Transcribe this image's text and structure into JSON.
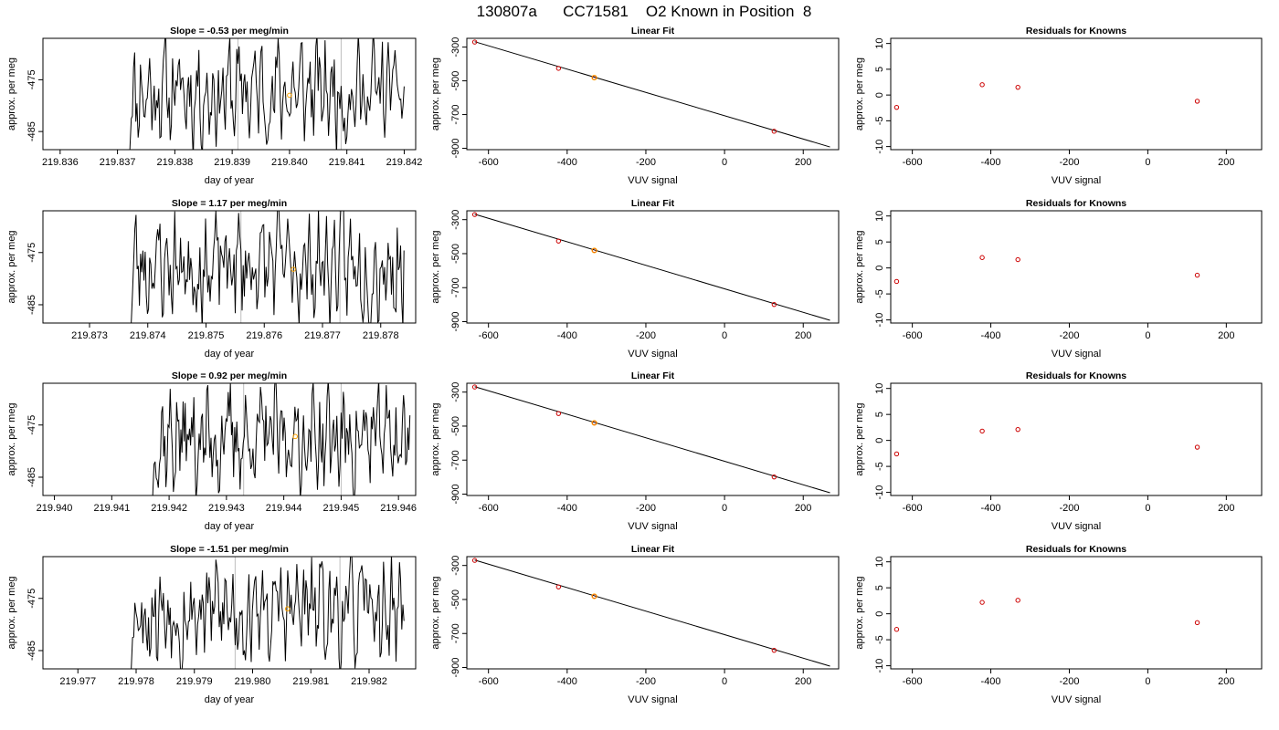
{
  "title": "130807a      CC71581    O2 Known in Position  8",
  "colors": {
    "trace": "#000000",
    "orange_point": "#ffa500",
    "known_point": "#cc0000",
    "vertical_line": "#bebebe",
    "fit_line": "#000000"
  },
  "chart_data": [
    {
      "type": "line",
      "title": "Slope =  -0.53  per meg/min",
      "xlabel": "day of year",
      "ylabel": "approx. per meg",
      "xlim": [
        219.8357,
        219.8422
      ],
      "ylim": [
        -488.5,
        -467.0
      ],
      "xticks": [
        "219.836",
        "219.837",
        "219.838",
        "219.839",
        "219.840",
        "219.841",
        "219.842"
      ],
      "xtick_values": [
        219.836,
        219.837,
        219.838,
        219.839,
        219.84,
        219.841,
        219.842
      ],
      "yticks": [
        "-475",
        "-485"
      ],
      "ytick_values": [
        -475,
        -485
      ],
      "trace_start": 219.8372,
      "trace_end": 219.842,
      "trace_mean": -477.3,
      "vlines": [
        219.8391,
        219.8409
      ],
      "orange_point": {
        "x": 219.84,
        "y": -478.0
      },
      "seed": 11
    },
    {
      "type": "scatter",
      "title": "Linear Fit",
      "xlabel": "VUV signal",
      "ylabel": "approx. per meg",
      "xlim": [
        -655,
        290
      ],
      "ylim": [
        -908,
        -248
      ],
      "xticks": [
        "-600",
        "-400",
        "-200",
        "0",
        "200"
      ],
      "xtick_values": [
        -600,
        -400,
        -200,
        0,
        200
      ],
      "yticks": [
        "-300",
        "-500",
        "-700",
        "-900"
      ],
      "ytick_values": [
        -300,
        -500,
        -700,
        -900
      ],
      "points": [
        {
          "x": -635,
          "y": -270
        },
        {
          "x": -422,
          "y": -426
        },
        {
          "x": -331,
          "y": -481
        },
        {
          "x": 126,
          "y": -799
        }
      ],
      "highlight_index": 2,
      "fit_line": {
        "x1": -635,
        "y1": -268,
        "x2": 268,
        "y2": -892
      }
    },
    {
      "type": "scatter",
      "title": "Residuals for Knowns",
      "xlabel": "VUV signal",
      "ylabel": "approx. per meg",
      "xlim": [
        -655,
        290
      ],
      "ylim": [
        -10.6,
        11.0
      ],
      "xticks": [
        "-600",
        "-400",
        "-200",
        "0",
        "200"
      ],
      "xtick_values": [
        -600,
        -400,
        -200,
        0,
        200
      ],
      "yticks": [
        "-10",
        "-5",
        "0",
        "5",
        "10"
      ],
      "ytick_values": [
        -10,
        -5,
        0,
        5,
        10
      ],
      "points": [
        {
          "x": -640,
          "y": -2.4
        },
        {
          "x": -422,
          "y": 2.0
        },
        {
          "x": -331,
          "y": 1.5
        },
        {
          "x": 126,
          "y": -1.2
        }
      ]
    },
    {
      "type": "line",
      "title": "Slope =  1.17  per meg/min",
      "xlabel": "day of year",
      "ylabel": "approx. per meg",
      "xlim": [
        219.8722,
        219.8786
      ],
      "ylim": [
        -488.5,
        -467.0
      ],
      "xticks": [
        "219.873",
        "219.874",
        "219.875",
        "219.876",
        "219.877",
        "219.878"
      ],
      "xtick_values": [
        219.873,
        219.874,
        219.875,
        219.876,
        219.877,
        219.878
      ],
      "yticks": [
        "-475",
        "-485"
      ],
      "ytick_values": [
        -475,
        -485
      ],
      "trace_start": 219.8737,
      "trace_end": 219.8784,
      "trace_mean": -477.5,
      "vlines": [
        219.8756,
        219.8773
      ],
      "orange_point": {
        "x": 219.8765,
        "y": -478.2
      },
      "seed": 23
    },
    {
      "type": "scatter",
      "title": "Linear Fit",
      "xlabel": "VUV signal",
      "ylabel": "approx. per meg",
      "xlim": [
        -655,
        290
      ],
      "ylim": [
        -908,
        -248
      ],
      "xticks": [
        "-600",
        "-400",
        "-200",
        "0",
        "200"
      ],
      "xtick_values": [
        -600,
        -400,
        -200,
        0,
        200
      ],
      "yticks": [
        "-300",
        "-500",
        "-700",
        "-900"
      ],
      "ytick_values": [
        -300,
        -500,
        -700,
        -900
      ],
      "points": [
        {
          "x": -635,
          "y": -270
        },
        {
          "x": -422,
          "y": -426
        },
        {
          "x": -331,
          "y": -481
        },
        {
          "x": 126,
          "y": -799
        }
      ],
      "highlight_index": 2,
      "fit_line": {
        "x1": -635,
        "y1": -268,
        "x2": 268,
        "y2": -892
      }
    },
    {
      "type": "scatter",
      "title": "Residuals for Knowns",
      "xlabel": "VUV signal",
      "ylabel": "approx. per meg",
      "xlim": [
        -655,
        290
      ],
      "ylim": [
        -10.6,
        11.0
      ],
      "xticks": [
        "-600",
        "-400",
        "-200",
        "0",
        "200"
      ],
      "xtick_values": [
        -600,
        -400,
        -200,
        0,
        200
      ],
      "yticks": [
        "-10",
        "-5",
        "0",
        "5",
        "10"
      ],
      "ytick_values": [
        -10,
        -5,
        0,
        5,
        10
      ],
      "points": [
        {
          "x": -640,
          "y": -2.6
        },
        {
          "x": -422,
          "y": 2.0
        },
        {
          "x": -331,
          "y": 1.6
        },
        {
          "x": 126,
          "y": -1.4
        }
      ]
    },
    {
      "type": "line",
      "title": "Slope =  0.92  per meg/min",
      "xlabel": "day of year",
      "ylabel": "approx. per meg",
      "xlim": [
        219.9398,
        219.9463
      ],
      "ylim": [
        -488.5,
        -467.0
      ],
      "xticks": [
        "219.940",
        "219.941",
        "219.942",
        "219.943",
        "219.944",
        "219.945",
        "219.946"
      ],
      "xtick_values": [
        219.94,
        219.941,
        219.942,
        219.943,
        219.944,
        219.945,
        219.946
      ],
      "yticks": [
        "-475",
        "-485"
      ],
      "ytick_values": [
        -475,
        -485
      ],
      "trace_start": 219.9417,
      "trace_end": 219.9462,
      "trace_mean": -477.6,
      "vlines": [
        219.9433,
        219.945
      ],
      "orange_point": {
        "x": 219.9442,
        "y": -477.2
      },
      "seed": 37
    },
    {
      "type": "scatter",
      "title": "Linear Fit",
      "xlabel": "VUV signal",
      "ylabel": "approx. per meg",
      "xlim": [
        -655,
        290
      ],
      "ylim": [
        -908,
        -248
      ],
      "xticks": [
        "-600",
        "-400",
        "-200",
        "0",
        "200"
      ],
      "xtick_values": [
        -600,
        -400,
        -200,
        0,
        200
      ],
      "yticks": [
        "-300",
        "-500",
        "-700",
        "-900"
      ],
      "ytick_values": [
        -300,
        -500,
        -700,
        -900
      ],
      "points": [
        {
          "x": -635,
          "y": -270
        },
        {
          "x": -422,
          "y": -426
        },
        {
          "x": -331,
          "y": -481
        },
        {
          "x": 126,
          "y": -799
        }
      ],
      "highlight_index": 2,
      "fit_line": {
        "x1": -635,
        "y1": -268,
        "x2": 268,
        "y2": -892
      }
    },
    {
      "type": "scatter",
      "title": "Residuals for Knowns",
      "xlabel": "VUV signal",
      "ylabel": "approx. per meg",
      "xlim": [
        -655,
        290
      ],
      "ylim": [
        -10.6,
        11.0
      ],
      "xticks": [
        "-600",
        "-400",
        "-200",
        "0",
        "200"
      ],
      "xtick_values": [
        -600,
        -400,
        -200,
        0,
        200
      ],
      "yticks": [
        "-10",
        "-5",
        "0",
        "5",
        "10"
      ],
      "ytick_values": [
        -10,
        -5,
        0,
        5,
        10
      ],
      "points": [
        {
          "x": -640,
          "y": -2.6
        },
        {
          "x": -422,
          "y": 1.8
        },
        {
          "x": -331,
          "y": 2.1
        },
        {
          "x": 126,
          "y": -1.3
        }
      ]
    },
    {
      "type": "line",
      "title": "Slope =  -1.51  per meg/min",
      "xlabel": "day of year",
      "ylabel": "approx. per meg",
      "xlim": [
        219.9764,
        219.9828
      ],
      "ylim": [
        -488.5,
        -467.0
      ],
      "xticks": [
        "219.977",
        "219.978",
        "219.979",
        "219.980",
        "219.981",
        "219.982"
      ],
      "xtick_values": [
        219.977,
        219.978,
        219.979,
        219.98,
        219.981,
        219.982
      ],
      "yticks": [
        "-475",
        "-485"
      ],
      "ytick_values": [
        -475,
        -485
      ],
      "trace_start": 219.9779,
      "trace_end": 219.9826,
      "trace_mean": -477.4,
      "vlines": [
        219.9797,
        219.9815
      ],
      "orange_point": {
        "x": 219.9806,
        "y": -477.0
      },
      "seed": 53
    },
    {
      "type": "scatter",
      "title": "Linear Fit",
      "xlabel": "VUV signal",
      "ylabel": "approx. per meg",
      "xlim": [
        -655,
        290
      ],
      "ylim": [
        -908,
        -248
      ],
      "xticks": [
        "-600",
        "-400",
        "-200",
        "0",
        "200"
      ],
      "xtick_values": [
        -600,
        -400,
        -200,
        0,
        200
      ],
      "yticks": [
        "-300",
        "-500",
        "-700",
        "-900"
      ],
      "ytick_values": [
        -300,
        -500,
        -700,
        -900
      ],
      "points": [
        {
          "x": -635,
          "y": -270
        },
        {
          "x": -422,
          "y": -426
        },
        {
          "x": -331,
          "y": -481
        },
        {
          "x": 126,
          "y": -799
        }
      ],
      "highlight_index": 2,
      "fit_line": {
        "x1": -635,
        "y1": -268,
        "x2": 268,
        "y2": -892
      }
    },
    {
      "type": "scatter",
      "title": "Residuals for Knowns",
      "xlabel": "VUV signal",
      "ylabel": "approx. per meg",
      "xlim": [
        -655,
        290
      ],
      "ylim": [
        -10.6,
        11.0
      ],
      "xticks": [
        "-600",
        "-400",
        "-200",
        "0",
        "200"
      ],
      "xtick_values": [
        -600,
        -400,
        -200,
        0,
        200
      ],
      "yticks": [
        "-10",
        "-5",
        "0",
        "5",
        "10"
      ],
      "ytick_values": [
        -10,
        -5,
        0,
        5,
        10
      ],
      "points": [
        {
          "x": -640,
          "y": -3.0
        },
        {
          "x": -422,
          "y": 2.2
        },
        {
          "x": -331,
          "y": 2.6
        },
        {
          "x": 126,
          "y": -1.7
        }
      ]
    }
  ]
}
